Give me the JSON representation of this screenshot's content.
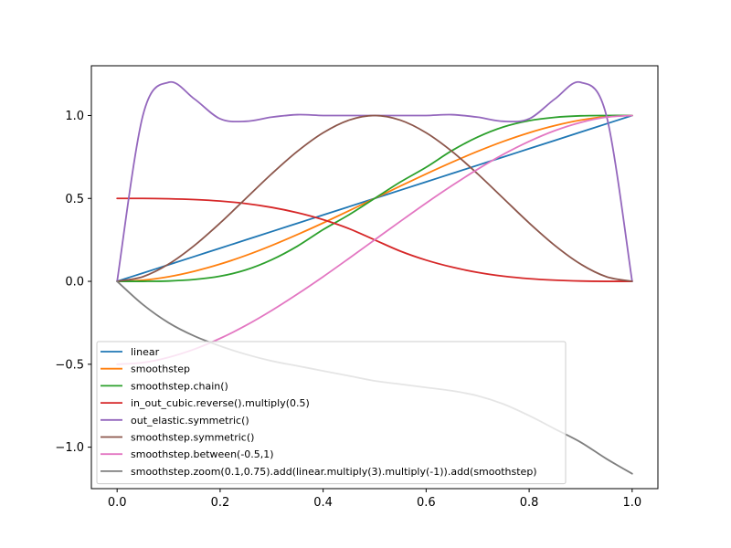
{
  "chart_data": {
    "type": "line",
    "title": "",
    "xlabel": "",
    "ylabel": "",
    "xlim": [
      -0.05,
      1.05
    ],
    "ylim": [
      -1.25,
      1.3
    ],
    "xticks": [
      0.0,
      0.2,
      0.4,
      0.6,
      0.8,
      1.0
    ],
    "xtick_labels": [
      "0.0",
      "0.2",
      "0.4",
      "0.6",
      "0.8",
      "1.0"
    ],
    "yticks": [
      -1.0,
      -0.5,
      0.0,
      0.5,
      1.0
    ],
    "ytick_labels": [
      "−1.0",
      "−0.5",
      "0.0",
      "0.5",
      "1.0"
    ],
    "grid": false,
    "legend_position": "lower-left",
    "x": [
      0.0,
      0.05,
      0.1,
      0.15,
      0.2,
      0.25,
      0.3,
      0.35,
      0.4,
      0.45,
      0.5,
      0.55,
      0.6,
      0.65,
      0.7,
      0.75,
      0.8,
      0.85,
      0.9,
      0.95,
      1.0
    ],
    "series": [
      {
        "name": "linear",
        "color": "#1f77b4",
        "values": [
          0.0,
          0.05,
          0.1,
          0.15,
          0.2,
          0.25,
          0.3,
          0.35,
          0.4,
          0.45,
          0.5,
          0.55,
          0.6,
          0.65,
          0.7,
          0.75,
          0.8,
          0.85,
          0.9,
          0.95,
          1.0
        ]
      },
      {
        "name": "smoothstep",
        "color": "#ff7f0e",
        "values": [
          0.0,
          0.007,
          0.028,
          0.061,
          0.104,
          0.156,
          0.216,
          0.282,
          0.352,
          0.425,
          0.5,
          0.575,
          0.648,
          0.718,
          0.784,
          0.844,
          0.896,
          0.939,
          0.972,
          0.993,
          1.0
        ]
      },
      {
        "name": "smoothstep.chain()",
        "color": "#2ca02c",
        "values": [
          0.0,
          0.0,
          0.002,
          0.011,
          0.031,
          0.069,
          0.13,
          0.212,
          0.312,
          0.401,
          0.5,
          0.599,
          0.688,
          0.788,
          0.87,
          0.931,
          0.969,
          0.989,
          0.998,
          1.0,
          1.0
        ]
      },
      {
        "name": "in_out_cubic.reverse().multiply(0.5)",
        "color": "#d62728",
        "values": [
          0.5,
          0.5,
          0.498,
          0.493,
          0.484,
          0.469,
          0.446,
          0.414,
          0.372,
          0.318,
          0.25,
          0.182,
          0.128,
          0.086,
          0.054,
          0.031,
          0.016,
          0.007,
          0.002,
          0.0,
          0.0
        ]
      },
      {
        "name": "out_elastic.symmetric()",
        "color": "#9467bd",
        "values": [
          0.0,
          1.0,
          1.2,
          1.1,
          0.98,
          0.965,
          0.99,
          1.005,
          1.0,
          1.0,
          1.0,
          1.0,
          1.0,
          1.005,
          0.99,
          0.965,
          0.98,
          1.1,
          1.2,
          1.0,
          0.0
        ]
      },
      {
        "name": "smoothstep.symmetric()",
        "color": "#8c564b",
        "values": [
          0.0,
          0.028,
          0.104,
          0.216,
          0.352,
          0.5,
          0.648,
          0.784,
          0.896,
          0.972,
          1.0,
          0.972,
          0.896,
          0.784,
          0.648,
          0.5,
          0.352,
          0.216,
          0.104,
          0.028,
          0.0
        ]
      },
      {
        "name": "smoothstep.between(-0.5,1)",
        "color": "#e377c2",
        "values": [
          -0.5,
          -0.49,
          -0.458,
          -0.409,
          -0.344,
          -0.266,
          -0.176,
          -0.077,
          0.028,
          0.138,
          0.25,
          0.362,
          0.472,
          0.577,
          0.676,
          0.766,
          0.844,
          0.909,
          0.958,
          0.99,
          1.0
        ]
      },
      {
        "name": "smoothstep.zoom(0.1,0.75).add(linear.multiply(3).multiply(-1)).add(smoothstep)",
        "color": "#7f7f7f",
        "values": [
          0.0,
          -0.14,
          -0.25,
          -0.33,
          -0.39,
          -0.44,
          -0.48,
          -0.51,
          -0.54,
          -0.57,
          -0.6,
          -0.62,
          -0.64,
          -0.66,
          -0.69,
          -0.74,
          -0.81,
          -0.89,
          -0.97,
          -1.07,
          -1.16
        ]
      }
    ]
  }
}
